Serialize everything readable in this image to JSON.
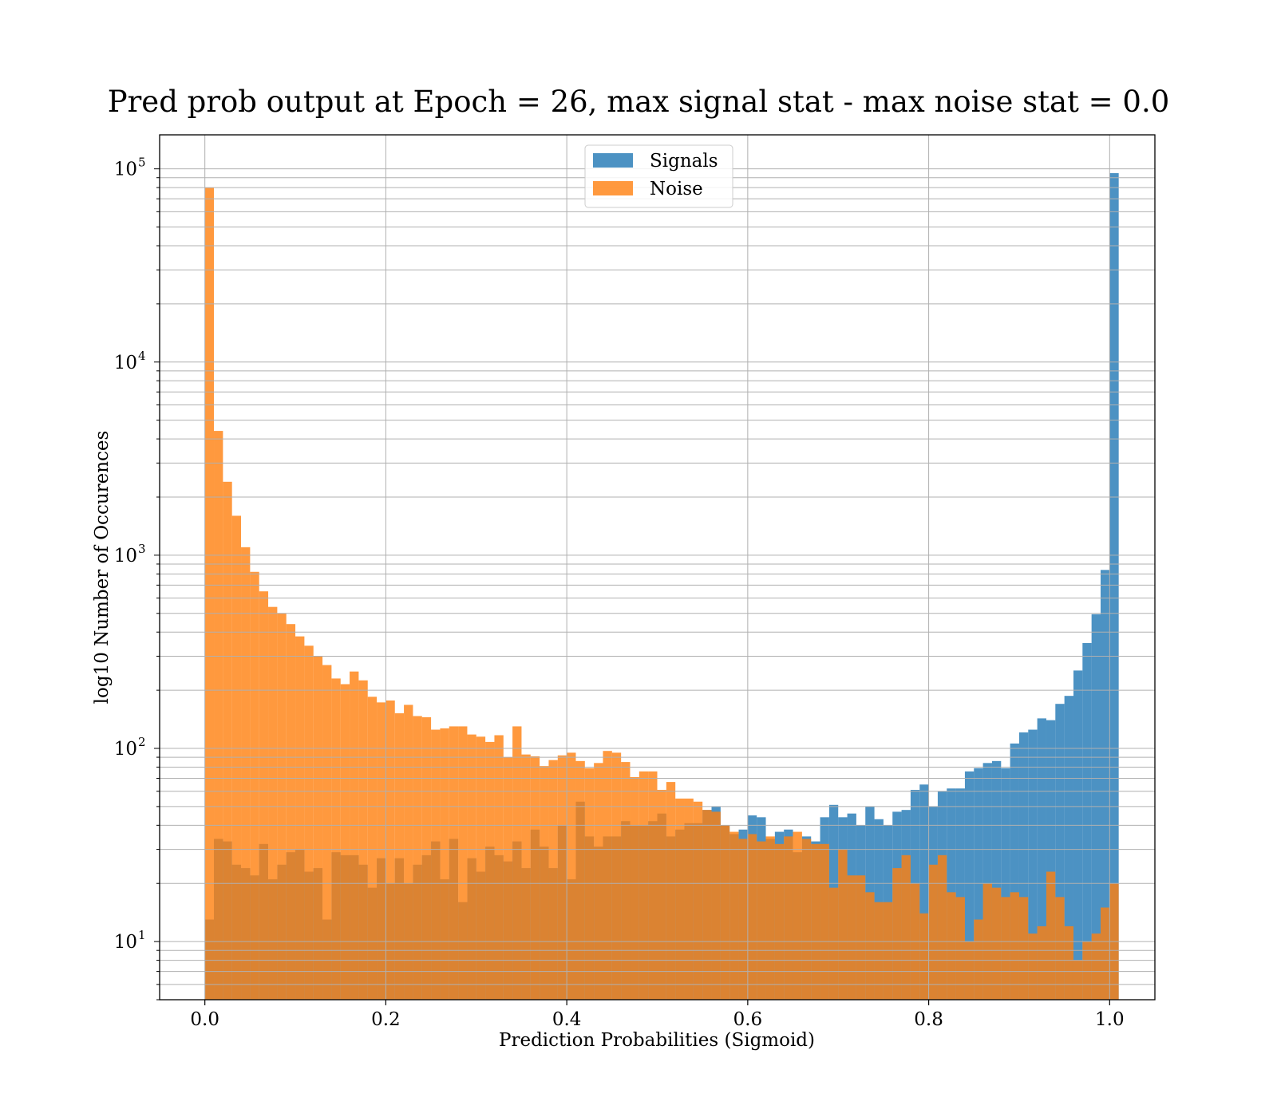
{
  "chart_data": {
    "type": "bar",
    "title": "Pred prob output at Epoch = 26, max signal stat - max noise stat = 0.0",
    "xlabel": "Prediction Probabilities (Sigmoid)",
    "ylabel": "log10 Number of Occurences",
    "xlim": [
      -0.05,
      1.05
    ],
    "ylim": [
      5,
      150000
    ],
    "yscale": "log",
    "x_ticks": [
      0.0,
      0.2,
      0.4,
      0.6,
      0.8,
      1.0
    ],
    "x_tick_labels": [
      "0.0",
      "0.2",
      "0.4",
      "0.6",
      "0.8",
      "1.0"
    ],
    "y_ticks": [
      10,
      100,
      1000,
      10000,
      100000
    ],
    "y_tick_labels": [
      "10",
      "10",
      "10",
      "10",
      "10"
    ],
    "y_tick_exponents": [
      "1",
      "2",
      "3",
      "4",
      "5"
    ],
    "grid": true,
    "legend_position": "top-center",
    "bin_width": 0.01,
    "bin_start": 0.0,
    "series": [
      {
        "name": "Signals",
        "color": "#1f77b4",
        "values": [
          13,
          34,
          33,
          25,
          24,
          22,
          32,
          21,
          25,
          29,
          30,
          23,
          24,
          13,
          29,
          28,
          28,
          25,
          19,
          27,
          20,
          27,
          20,
          25,
          28,
          33,
          21,
          34,
          16,
          27,
          23,
          31,
          28,
          26,
          33,
          24,
          38,
          31,
          24,
          40,
          21,
          53,
          35,
          31,
          35,
          35,
          42,
          40,
          40,
          42,
          46,
          35,
          38,
          41,
          41,
          48,
          50,
          40,
          36,
          38,
          45,
          44,
          34,
          37,
          38,
          29,
          35,
          33,
          44,
          51,
          44,
          46,
          40,
          50,
          43,
          40,
          47,
          48,
          61,
          65,
          50,
          60,
          62,
          62,
          76,
          79,
          84,
          86,
          79,
          106,
          121,
          125,
          143,
          140,
          170,
          187,
          253,
          351,
          495,
          839,
          95000
        ]
      },
      {
        "name": "Noise",
        "color": "#ff7f0e",
        "values": [
          80000,
          4400,
          2400,
          1600,
          1100,
          820,
          650,
          540,
          500,
          440,
          380,
          340,
          300,
          270,
          230,
          215,
          250,
          225,
          185,
          173,
          177,
          152,
          168,
          147,
          145,
          125,
          127,
          130,
          130,
          118,
          115,
          108,
          117,
          90,
          130,
          93,
          91,
          81,
          87,
          92,
          95,
          86,
          79,
          84,
          97,
          95,
          85,
          71,
          76,
          76,
          61,
          67,
          55,
          55,
          53,
          48,
          47,
          40,
          37,
          34,
          36,
          33,
          35,
          32,
          35,
          37,
          34,
          32,
          32,
          19,
          30,
          22,
          22,
          18,
          16,
          16,
          24,
          28,
          20,
          14,
          25,
          28,
          18,
          17,
          10,
          13,
          20,
          19,
          17,
          18,
          17,
          11,
          12,
          23,
          17,
          12,
          8,
          10,
          11,
          15,
          20
        ]
      }
    ]
  }
}
